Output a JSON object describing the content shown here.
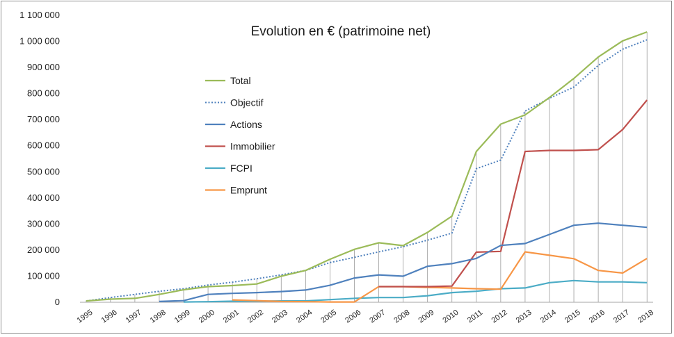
{
  "chart_data": {
    "type": "line",
    "title": "Evolution en € (patrimoine net)",
    "xlabel": "",
    "ylabel": "",
    "x": [
      "1995",
      "1996",
      "1997",
      "1998",
      "1999",
      "2000",
      "2001",
      "2002",
      "2003",
      "2004",
      "2005",
      "2006",
      "2007",
      "2008",
      "2009",
      "2010",
      "2011",
      "2012",
      "2013",
      "2014",
      "2015",
      "2016",
      "2017",
      "2018"
    ],
    "ylim": [
      0,
      1100000
    ],
    "yticks": [
      0,
      100000,
      200000,
      300000,
      400000,
      500000,
      600000,
      700000,
      800000,
      900000,
      1000000,
      1100000
    ],
    "ytick_labels": [
      "0",
      "100 000",
      "200 000",
      "300 000",
      "400 000",
      "500 000",
      "600 000",
      "700 000",
      "800 000",
      "900 000",
      "1 000 000",
      "1 100 000"
    ],
    "grid": "vertical drop lines between Total and zero",
    "legend_position": "center-left",
    "series": [
      {
        "name": "Total",
        "color": "#9bbb59",
        "style": "solid",
        "values": [
          5000,
          12000,
          15000,
          30000,
          48000,
          60000,
          64000,
          70000,
          100000,
          122000,
          165000,
          203000,
          228000,
          217000,
          268000,
          330000,
          578000,
          683000,
          718000,
          785000,
          858000,
          940000,
          1002000,
          1036000
        ]
      },
      {
        "name": "Objectif",
        "color": "#4f81bd",
        "style": "dotted",
        "values": [
          5000,
          18000,
          30000,
          42000,
          52000,
          66000,
          77000,
          90000,
          105000,
          122000,
          152000,
          172000,
          193000,
          213000,
          238000,
          265000,
          512000,
          545000,
          733000,
          782000,
          825000,
          908000,
          970000,
          1006000
        ]
      },
      {
        "name": "Actions",
        "color": "#4f81bd",
        "style": "solid",
        "values": [
          null,
          null,
          null,
          3000,
          6000,
          30000,
          34000,
          37000,
          41000,
          47000,
          65000,
          93000,
          105000,
          100000,
          138000,
          148000,
          168000,
          218000,
          225000,
          260000,
          295000,
          303000,
          295000,
          287000
        ]
      },
      {
        "name": "Immobilier",
        "color": "#c0504d",
        "style": "solid",
        "values": [
          null,
          null,
          null,
          null,
          null,
          null,
          null,
          null,
          null,
          null,
          null,
          null,
          60000,
          60000,
          60000,
          62000,
          192000,
          195000,
          578000,
          582000,
          582000,
          585000,
          662000,
          775000
        ]
      },
      {
        "name": "FCPI",
        "color": "#4bacc6",
        "style": "solid",
        "values": [
          null,
          null,
          null,
          null,
          1000,
          2000,
          4000,
          4000,
          5000,
          5000,
          10000,
          15000,
          18000,
          18000,
          25000,
          37000,
          42000,
          52000,
          55000,
          75000,
          83000,
          78000,
          78000,
          75000
        ]
      },
      {
        "name": "Emprunt",
        "color": "#f79646",
        "style": "solid",
        "values": [
          null,
          null,
          null,
          null,
          null,
          null,
          9000,
          6000,
          3000,
          2000,
          1000,
          1000,
          60000,
          60000,
          57000,
          55000,
          52000,
          50000,
          193000,
          180000,
          167000,
          122000,
          112000,
          168000
        ]
      }
    ]
  }
}
